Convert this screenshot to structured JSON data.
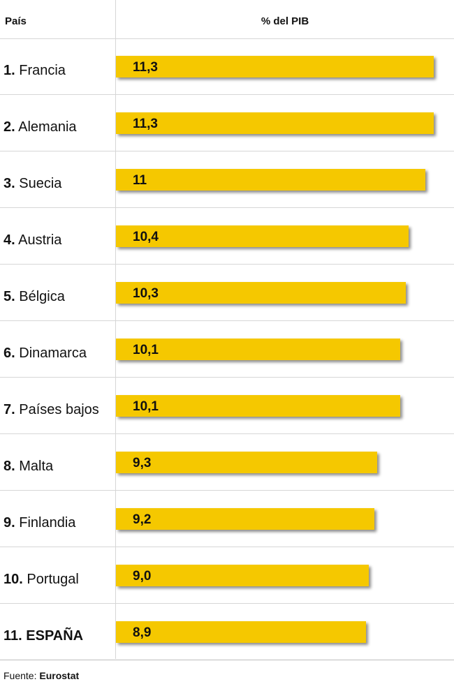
{
  "header": {
    "country_col": "País",
    "value_col": "% del PIB"
  },
  "chart_data": {
    "type": "bar",
    "orientation": "horizontal",
    "categories": [
      "Francia",
      "Alemania",
      "Suecia",
      "Austria",
      "Bélgica",
      "Dinamarca",
      "Países bajos",
      "Malta",
      "Finlandia",
      "Portugal",
      "ESPAÑA"
    ],
    "ranks": [
      "1.",
      "2.",
      "3.",
      "4.",
      "5.",
      "6.",
      "7.",
      "8.",
      "9.",
      "10.",
      "11."
    ],
    "values": [
      11.3,
      11.3,
      11.0,
      10.4,
      10.3,
      10.1,
      10.1,
      9.3,
      9.2,
      9.0,
      8.9
    ],
    "value_labels": [
      "11,3",
      "11,3",
      "11",
      "10,4",
      "10,3",
      "10,1",
      "10,1",
      "9,3",
      "9,2",
      "9,0",
      "8,9"
    ],
    "highlight": [
      "ESPAÑA"
    ],
    "xlim": [
      0,
      12
    ],
    "bar_color": "#f5c800",
    "grid": false
  },
  "source": {
    "prefix": "Fuente:",
    "name": "Eurostat"
  }
}
